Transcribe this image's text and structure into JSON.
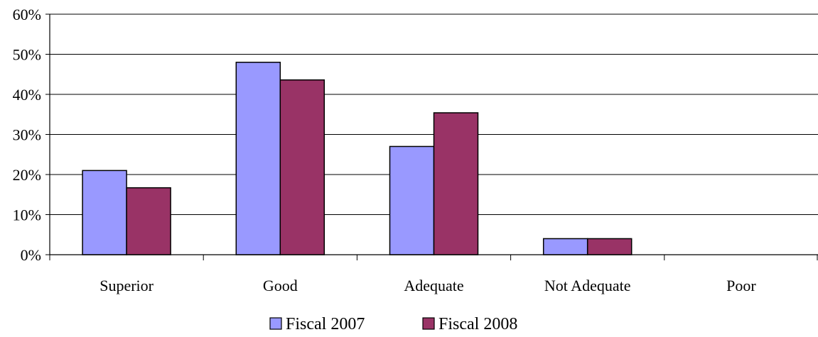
{
  "chart_data": {
    "type": "bar",
    "categories": [
      "Superior",
      "Good",
      "Adequate",
      "Not Adequate",
      "Poor"
    ],
    "series": [
      {
        "name": "Fiscal 2007",
        "values": [
          21,
          48,
          27,
          4,
          0
        ],
        "color": "#9999ff"
      },
      {
        "name": "Fiscal 2008",
        "values": [
          16.7,
          43.6,
          35.4,
          4,
          0
        ],
        "color": "#993366"
      }
    ],
    "ylim": [
      0,
      60
    ],
    "yticks": [
      0,
      10,
      20,
      30,
      40,
      50,
      60
    ],
    "ytick_labels": [
      "0%",
      "10%",
      "20%",
      "30%",
      "40%",
      "50%",
      "60%"
    ],
    "grid": true,
    "legend_position": "bottom"
  }
}
